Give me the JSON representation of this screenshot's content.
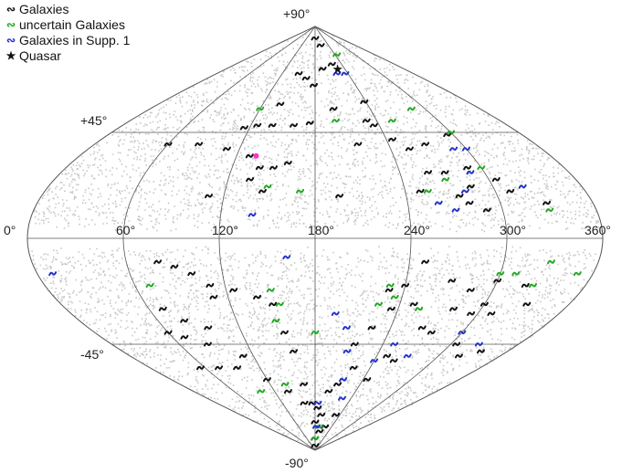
{
  "chart_data": {
    "type": "scatter",
    "projection": "sinusoidal",
    "xlim": [
      0,
      360
    ],
    "ylim": [
      -90,
      90
    ],
    "grid": true,
    "legend_position": "top-left",
    "x_ticks": [
      "0°",
      "60°",
      "120°",
      "180°",
      "240°",
      "300°",
      "360°"
    ],
    "y_ticks": [
      "+90°",
      "+45°",
      "-45°",
      "-90°"
    ],
    "colors": {
      "galaxies": "#111111",
      "uncertain": "#22aa22",
      "supp": "#2233cc",
      "quasar": "#111111",
      "background": "#c8c8c8",
      "highlight": "#ff33cc"
    },
    "series": [
      {
        "name": "Galaxies",
        "key": "galaxies",
        "marker": "squiggle",
        "points": [
          [
            180,
            85
          ],
          [
            150,
            70
          ],
          [
            165,
            68
          ],
          [
            178,
            65
          ],
          [
            195,
            72
          ],
          [
            205,
            82
          ],
          [
            218,
            74
          ],
          [
            140,
            57
          ],
          [
            126,
            48
          ],
          [
            115,
            47
          ],
          [
            140,
            48
          ],
          [
            160,
            48
          ],
          [
            175,
            49
          ],
          [
            60,
            40
          ],
          [
            85,
            40
          ],
          [
            110,
            38
          ],
          [
            130,
            35
          ],
          [
            140,
            30
          ],
          [
            150,
            30
          ],
          [
            160,
            32
          ],
          [
            135,
            25
          ],
          [
            145,
            20
          ],
          [
            200,
            55
          ],
          [
            235,
            48
          ],
          [
            245,
            42
          ],
          [
            215,
            40
          ],
          [
            255,
            38
          ],
          [
            270,
            40
          ],
          [
            295,
            44
          ],
          [
            300,
            45
          ],
          [
            290,
            30
          ],
          [
            260,
            28
          ],
          [
            272,
            28
          ],
          [
            285,
            22
          ],
          [
            305,
            25
          ],
          [
            310,
            20
          ],
          [
            330,
            15
          ],
          [
            275,
            18
          ],
          [
            280,
            15
          ],
          [
            290,
            12
          ],
          [
            250,
            20
          ],
          [
            230,
            50
          ],
          [
            238,
            58
          ],
          [
            110,
            18
          ],
          [
            196,
            18
          ],
          [
            250,
            -10
          ],
          [
            270,
            -18
          ],
          [
            285,
            -22
          ],
          [
            300,
            -18
          ],
          [
            320,
            -20
          ],
          [
            330,
            -28
          ],
          [
            310,
            -32
          ],
          [
            295,
            -32
          ],
          [
            280,
            -30
          ],
          [
            275,
            -40
          ],
          [
            265,
            -38
          ],
          [
            250,
            -50
          ],
          [
            245,
            -60
          ],
          [
            260,
            -52
          ],
          [
            225,
            -38
          ],
          [
            235,
            -30
          ],
          [
            230,
            -22
          ],
          [
            240,
            -20
          ],
          [
            250,
            -28
          ],
          [
            215,
            -45
          ],
          [
            222,
            -55
          ],
          [
            210,
            -62
          ],
          [
            200,
            -65
          ],
          [
            195,
            -75
          ],
          [
            200,
            -82
          ],
          [
            185,
            -72
          ],
          [
            180,
            -78
          ],
          [
            175,
            -70
          ],
          [
            178,
            -85
          ],
          [
            180,
            -88
          ],
          [
            165,
            -62
          ],
          [
            160,
            -48
          ],
          [
            155,
            -40
          ],
          [
            150,
            -28
          ],
          [
            140,
            -25
          ],
          [
            125,
            -22
          ],
          [
            110,
            -20
          ],
          [
            100,
            -15
          ],
          [
            90,
            -12
          ],
          [
            80,
            -10
          ],
          [
            110,
            -25
          ],
          [
            70,
            -30
          ],
          [
            80,
            -35
          ],
          [
            95,
            -38
          ],
          [
            60,
            -40
          ],
          [
            70,
            -42
          ],
          [
            85,
            -45
          ],
          [
            110,
            -50
          ],
          [
            55,
            -55
          ],
          [
            75,
            -55
          ],
          [
            95,
            -55
          ],
          [
            120,
            -60
          ],
          [
            140,
            -65
          ],
          [
            160,
            -70
          ],
          [
            230,
            -75
          ],
          [
            215,
            -80
          ],
          [
            320,
            -50
          ],
          [
            335,
            -48
          ],
          [
            305,
            -45
          ],
          [
            300,
            -28
          ]
        ]
      },
      {
        "name": "uncertain Galaxies",
        "key": "uncertain",
        "marker": "squiggle",
        "points": [
          [
            245,
            78
          ],
          [
            200,
            50
          ],
          [
            255,
            50
          ],
          [
            285,
            55
          ],
          [
            300,
            45
          ],
          [
            300,
            30
          ],
          [
            270,
            25
          ],
          [
            255,
            20
          ],
          [
            330,
            12
          ],
          [
            170,
            20
          ],
          [
            148,
            22
          ],
          [
            120,
            55
          ],
          [
            150,
            -22
          ],
          [
            155,
            -28
          ],
          [
            150,
            -35
          ],
          [
            70,
            -20
          ],
          [
            230,
            -20
          ],
          [
            235,
            -25
          ],
          [
            225,
            -28
          ],
          [
            255,
            -30
          ],
          [
            310,
            -15
          ],
          [
            330,
            -10
          ],
          [
            325,
            -20
          ],
          [
            350,
            -15
          ],
          [
            300,
            -15
          ],
          [
            180,
            -40
          ],
          [
            215,
            -60
          ],
          [
            100,
            -65
          ],
          [
            140,
            -62
          ],
          [
            195,
            -80
          ],
          [
            180,
            -85
          ]
        ]
      },
      {
        "name": "Galaxies in Supp. 1",
        "key": "supp",
        "marker": "squiggle",
        "points": [
          [
            220,
            70
          ],
          [
            235,
            70
          ],
          [
            290,
            38
          ],
          [
            300,
            38
          ],
          [
            290,
            28
          ],
          [
            280,
            20
          ],
          [
            320,
            22
          ],
          [
            260,
            15
          ],
          [
            270,
            12
          ],
          [
            140,
            10
          ],
          [
            10,
            -15
          ],
          [
            162,
            -8
          ],
          [
            195,
            -32
          ],
          [
            205,
            -38
          ],
          [
            250,
            -45
          ],
          [
            240,
            -52
          ],
          [
            215,
            -60
          ],
          [
            225,
            -68
          ],
          [
            270,
            -50
          ],
          [
            300,
            -40
          ],
          [
            325,
            -45
          ],
          [
            185,
            -80
          ],
          [
            185,
            -70
          ],
          [
            210,
            -48
          ]
        ]
      },
      {
        "name": "Quasar",
        "key": "quasar",
        "marker": "star",
        "points": [
          [
            225,
            72
          ]
        ]
      }
    ],
    "highlight_point": [
      135,
      35
    ]
  }
}
